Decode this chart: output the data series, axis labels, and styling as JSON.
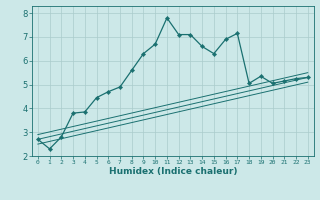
{
  "xlabel": "Humidex (Indice chaleur)",
  "background_color": "#cce8e8",
  "grid_color": "#aacccc",
  "line_color": "#1a7070",
  "xlim": [
    -0.5,
    23.5
  ],
  "ylim": [
    2,
    8.3
  ],
  "yticks": [
    2,
    3,
    4,
    5,
    6,
    7,
    8
  ],
  "xticks": [
    0,
    1,
    2,
    3,
    4,
    5,
    6,
    7,
    8,
    9,
    10,
    11,
    12,
    13,
    14,
    15,
    16,
    17,
    18,
    19,
    20,
    21,
    22,
    23
  ],
  "main_x": [
    0,
    1,
    2,
    3,
    4,
    5,
    6,
    7,
    8,
    9,
    10,
    11,
    12,
    13,
    14,
    15,
    16,
    17,
    18,
    19,
    20,
    21,
    22,
    23
  ],
  "main_y": [
    2.7,
    2.3,
    2.8,
    3.8,
    3.85,
    4.45,
    4.7,
    4.9,
    5.6,
    6.3,
    6.7,
    7.8,
    7.1,
    7.1,
    6.6,
    6.3,
    6.9,
    7.15,
    5.05,
    5.35,
    5.05,
    5.15,
    5.25,
    5.3
  ],
  "trend_lines": [
    {
      "x": [
        0,
        23
      ],
      "y": [
        2.7,
        5.3
      ]
    },
    {
      "x": [
        0,
        23
      ],
      "y": [
        2.5,
        5.1
      ]
    },
    {
      "x": [
        0,
        23
      ],
      "y": [
        2.9,
        5.5
      ]
    }
  ]
}
